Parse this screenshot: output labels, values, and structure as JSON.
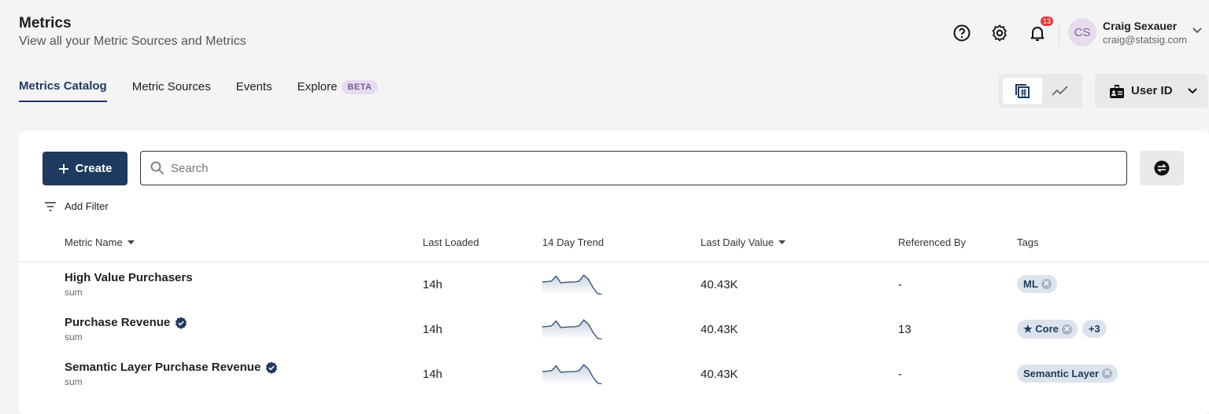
{
  "header": {
    "title": "Metrics",
    "subtitle": "View all your Metric Sources and Metrics"
  },
  "tabs": [
    {
      "label": "Metrics Catalog",
      "active": true
    },
    {
      "label": "Metric Sources"
    },
    {
      "label": "Events"
    },
    {
      "label": "Explore",
      "badge": "BETA"
    }
  ],
  "user": {
    "initials": "CS",
    "name": "Craig Sexauer",
    "email": "craig@statsig.com",
    "notifications": "13"
  },
  "toolbar": {
    "unit_selector": "User ID",
    "create_label": "Create",
    "search_placeholder": "Search",
    "add_filter": "Add Filter"
  },
  "table": {
    "columns": [
      "Metric Name",
      "Last Loaded",
      "14 Day Trend",
      "Last Daily Value",
      "Referenced By",
      "Tags"
    ],
    "rows": [
      {
        "name": "High Value Purchasers",
        "type": "sum",
        "verified": false,
        "last_loaded": "14h",
        "last_value": "40.43K",
        "referenced_by": "-",
        "tags": [
          {
            "label": "ML"
          }
        ],
        "more": ""
      },
      {
        "name": "Purchase Revenue",
        "type": "sum",
        "verified": true,
        "last_loaded": "14h",
        "last_value": "40.43K",
        "referenced_by": "13",
        "tags": [
          {
            "label": "★ Core"
          }
        ],
        "more": "+3"
      },
      {
        "name": "Semantic Layer Purchase Revenue",
        "type": "sum",
        "verified": true,
        "last_loaded": "14h",
        "last_value": "40.43K",
        "referenced_by": "-",
        "tags": [
          {
            "label": "Semantic Layer"
          }
        ],
        "more": ""
      }
    ]
  },
  "trend_shape": [
    0.62,
    0.63,
    0.66,
    0.9,
    0.58,
    0.6,
    0.61,
    0.62,
    0.66,
    0.95,
    0.75,
    0.35,
    0.05,
    0.0
  ],
  "colors": {
    "primary": "#1e3a5f",
    "badge": "#e53935",
    "tag_bg": "#dde3ec"
  }
}
